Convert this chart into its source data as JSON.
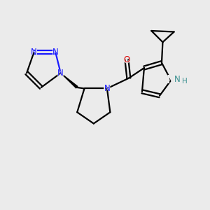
{
  "bg_color": "#ebebeb",
  "bond_color": "#000000",
  "N_color": "#1a1aff",
  "O_color": "#dd0000",
  "NH_color": "#3a9090",
  "line_width": 1.6,
  "figsize": [
    3.0,
    3.0
  ],
  "dpi": 100,
  "xlim": [
    0,
    10
  ],
  "ylim": [
    0,
    10
  ]
}
